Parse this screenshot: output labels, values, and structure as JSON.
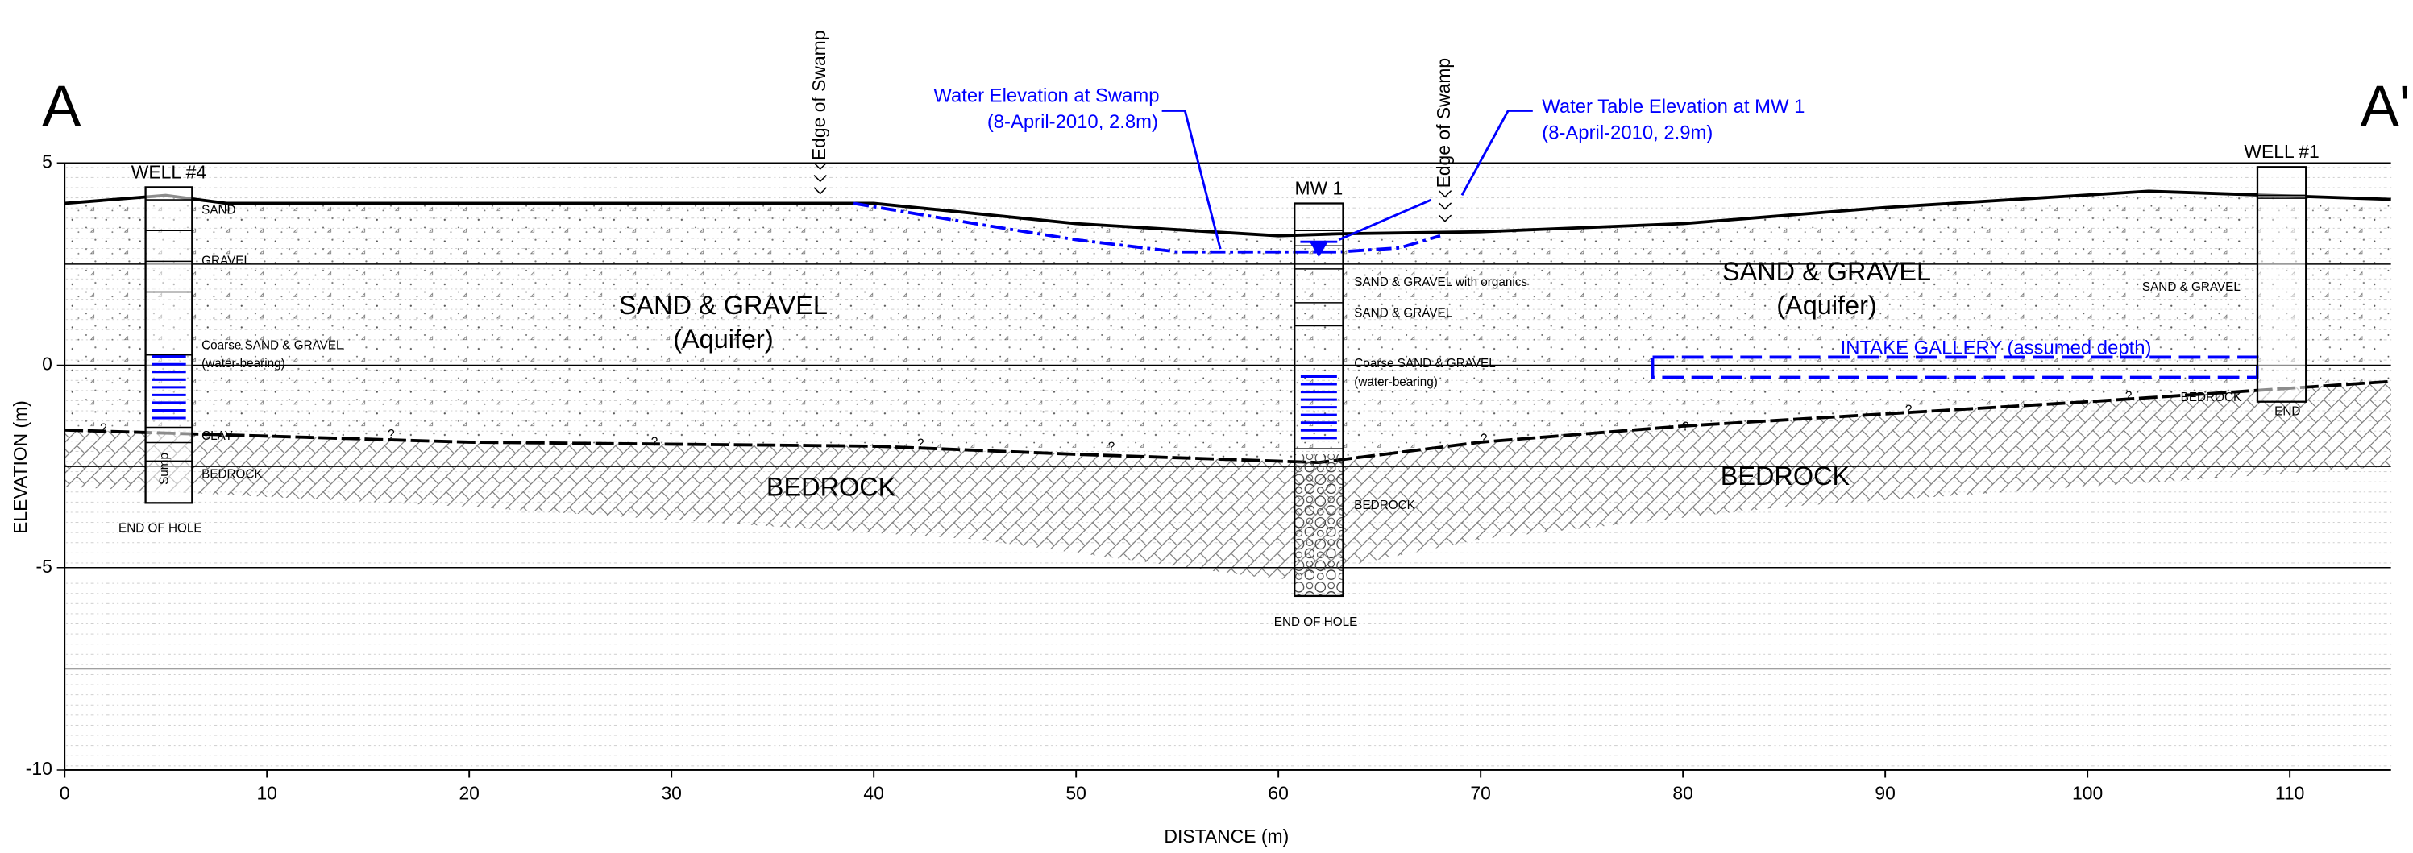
{
  "chart_data": {
    "type": "cross-section",
    "section_start": "A",
    "section_end": "A'",
    "x_label": "DISTANCE (m)",
    "y_label": "ELEVATION (m)",
    "xlim": [
      0,
      115
    ],
    "ylim": [
      -10,
      5
    ],
    "xticks": [
      0,
      10,
      20,
      30,
      40,
      50,
      60,
      70,
      80,
      90,
      100,
      110
    ],
    "yticks": [
      -10,
      -5,
      0,
      5
    ],
    "minor_yticks": [
      -7.5,
      -2.5,
      2.5
    ],
    "ground_surface": {
      "x": [
        0,
        5,
        8,
        40,
        50,
        60,
        63,
        70,
        80,
        90,
        103,
        115
      ],
      "values": [
        4.0,
        4.2,
        4.0,
        4.0,
        3.5,
        3.2,
        3.25,
        3.3,
        3.5,
        3.9,
        4.3,
        4.1
      ]
    },
    "bedrock_surface": {
      "x": [
        0,
        20,
        40,
        50,
        62,
        70,
        80,
        100,
        115
      ],
      "values": [
        -1.6,
        -1.9,
        -2.0,
        -2.2,
        -2.4,
        -1.9,
        -1.5,
        -0.9,
        -0.4
      ]
    },
    "bedrock_base": {
      "x": [
        0,
        20,
        45,
        60,
        70,
        85,
        100,
        115
      ],
      "values": [
        -3.0,
        -3.5,
        -4.3,
        -5.3,
        -4.3,
        -3.5,
        -3.0,
        -2.5
      ]
    },
    "swamp_water": {
      "x": [
        39,
        45,
        50,
        55,
        63,
        66,
        68
      ],
      "values": [
        4.0,
        3.5,
        3.1,
        2.8,
        2.8,
        2.9,
        3.2
      ],
      "color": "#0000ff"
    },
    "water_table_mw1": {
      "x": 62,
      "value": 2.9,
      "color": "#0000ff"
    },
    "intake_gallery": {
      "x": [
        78.5,
        108.4
      ],
      "values": [
        0.2,
        -0.3
      ],
      "label": "INTAKE GALLERY (assumed depth)",
      "color": "#0000ff"
    },
    "wells": [
      {
        "name": "WELL #4",
        "x": [
          4,
          6.3
        ],
        "top": 4.4,
        "bottom": -3.4
      },
      {
        "name": "MW 1",
        "x": [
          60.8,
          63.2
        ],
        "top": 4.0,
        "bottom": -5.7
      },
      {
        "name": "WELL #1",
        "x": [
          108.4,
          110.8
        ],
        "top": 4.9,
        "bottom": -0.9
      }
    ],
    "annotations": {
      "edge_of_swamp": "Edge of Swamp",
      "swamp_water_title": "Water Elevation at Swamp",
      "swamp_water_detail": "(8-April-2010, 2.8m)",
      "mw1_water_title": "Water Table Elevation at MW 1",
      "mw1_water_detail": "(8-April-2010, 2.9m)",
      "uncertain": "?"
    },
    "layers": {
      "aquifer": "SAND & GRAVEL",
      "aquifer_note": "(Aquifer)",
      "bedrock": "BEDROCK"
    },
    "logs": {
      "sand": "SAND",
      "gravel": "GRAVEL",
      "coarse": "Coarse SAND & GRAVEL",
      "water_bearing": "(water-bearing)",
      "clay": "CLAY",
      "bedrock": "BEDROCK",
      "end_of_hole": "END OF HOLE",
      "sump": "Sump",
      "organics": "SAND & GRAVEL with organics",
      "sand_gravel": "SAND & GRAVEL",
      "end": "END"
    }
  }
}
